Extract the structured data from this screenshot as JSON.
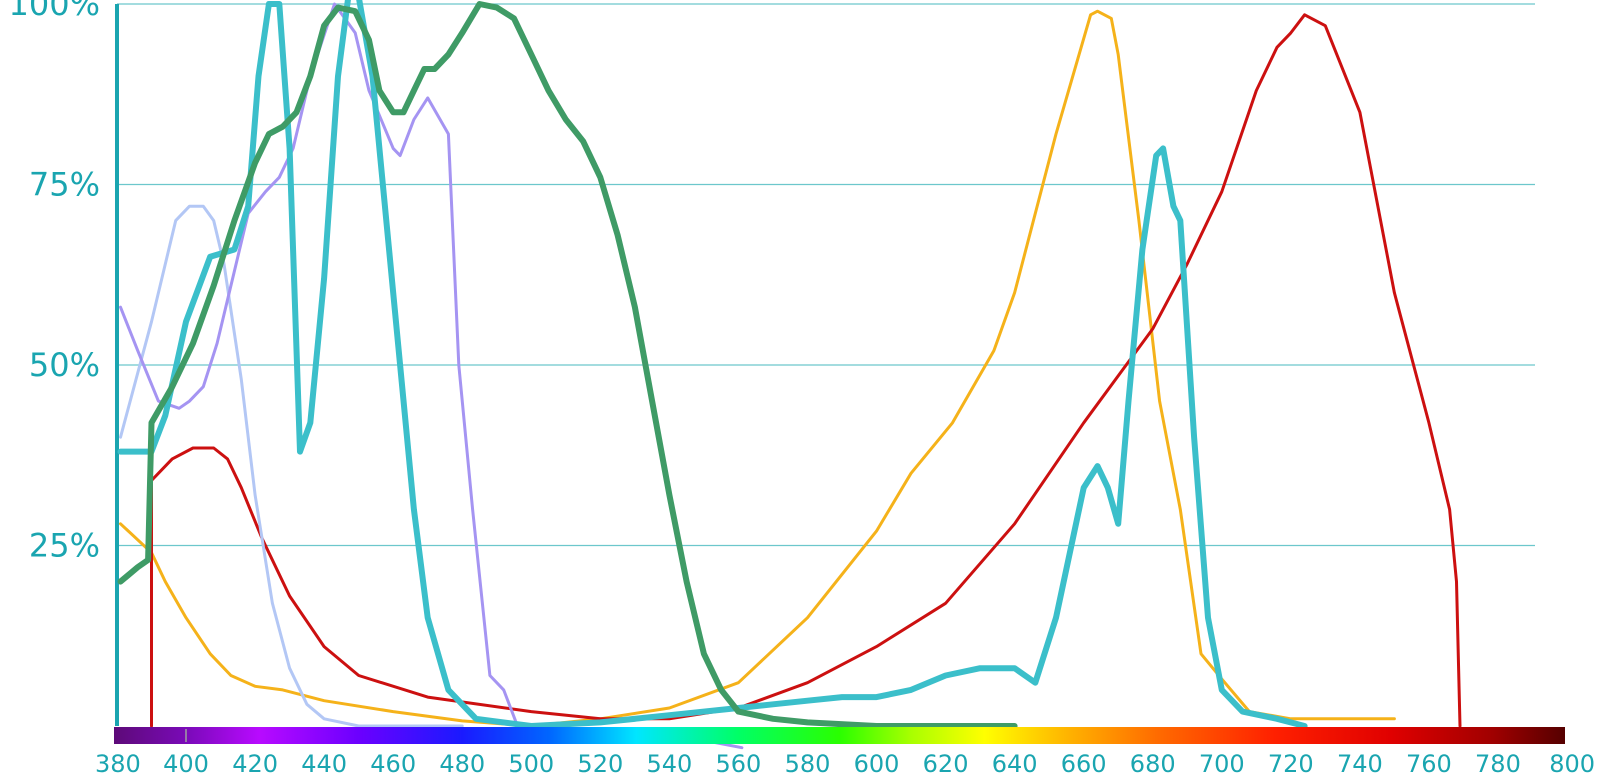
{
  "chart_data": {
    "type": "line",
    "title": "",
    "xlabel": "",
    "ylabel": "",
    "xlim": [
      380,
      800
    ],
    "ylim": [
      0,
      100
    ],
    "grid": true,
    "legend": "none",
    "x_ticks": [
      "380",
      "400",
      "420",
      "440",
      "460",
      "480",
      "500",
      "520",
      "540",
      "560",
      "580",
      "600",
      "620",
      "640",
      "660",
      "680",
      "700",
      "720",
      "740",
      "760",
      "780",
      "800"
    ],
    "y_ticks": [
      {
        "value": 25,
        "label": "25%"
      },
      {
        "value": 50,
        "label": "50%"
      },
      {
        "value": 75,
        "label": "75%"
      },
      {
        "value": 100,
        "label": "100%"
      }
    ],
    "spectrum_bar": true,
    "series": [
      {
        "color": "#f5b21a",
        "width": 3,
        "points": [
          [
            381,
            28
          ],
          [
            390,
            24
          ],
          [
            394,
            20
          ],
          [
            400,
            15
          ],
          [
            407,
            10
          ],
          [
            413,
            7
          ],
          [
            420,
            5.5
          ],
          [
            428,
            5
          ],
          [
            440,
            3.5
          ],
          [
            460,
            2
          ],
          [
            480,
            0.7
          ],
          [
            500,
            0
          ],
          [
            520,
            1
          ],
          [
            540,
            2.5
          ],
          [
            560,
            6
          ],
          [
            580,
            15
          ],
          [
            600,
            27
          ],
          [
            610,
            35
          ],
          [
            622,
            42
          ],
          [
            634,
            52
          ],
          [
            640,
            60
          ],
          [
            652,
            82
          ],
          [
            662,
            98.5
          ],
          [
            664,
            99
          ],
          [
            668,
            98
          ],
          [
            670,
            93
          ],
          [
            676,
            70
          ],
          [
            682,
            45
          ],
          [
            688,
            30
          ],
          [
            694,
            10
          ],
          [
            700,
            6.5
          ],
          [
            708,
            2
          ],
          [
            720,
            1
          ],
          [
            750,
            1
          ]
        ]
      },
      {
        "color": "#cc1010",
        "width": 3,
        "points": [
          [
            390,
            0
          ],
          [
            390,
            34
          ],
          [
            396,
            37
          ],
          [
            402,
            38.5
          ],
          [
            408,
            38.5
          ],
          [
            412,
            37
          ],
          [
            416,
            33
          ],
          [
            422,
            26
          ],
          [
            430,
            18
          ],
          [
            440,
            11
          ],
          [
            450,
            7
          ],
          [
            470,
            4
          ],
          [
            500,
            2
          ],
          [
            520,
            1
          ],
          [
            540,
            1
          ],
          [
            560,
            2.5
          ],
          [
            580,
            6
          ],
          [
            600,
            11
          ],
          [
            620,
            17
          ],
          [
            640,
            28
          ],
          [
            660,
            42
          ],
          [
            680,
            55
          ],
          [
            690,
            64
          ],
          [
            700,
            74
          ],
          [
            710,
            88
          ],
          [
            716,
            94
          ],
          [
            720,
            96
          ],
          [
            724,
            98.5
          ],
          [
            730,
            97
          ],
          [
            740,
            85
          ],
          [
            750,
            60
          ],
          [
            760,
            42
          ],
          [
            766,
            30
          ],
          [
            768,
            20
          ],
          [
            769,
            0
          ]
        ]
      },
      {
        "color": "#b3c7f5",
        "width": 3,
        "points": [
          [
            381,
            40
          ],
          [
            390,
            56
          ],
          [
            397,
            70
          ],
          [
            401,
            72
          ],
          [
            405,
            72
          ],
          [
            408,
            70
          ],
          [
            411,
            64
          ],
          [
            416,
            48
          ],
          [
            420,
            32
          ],
          [
            425,
            17
          ],
          [
            430,
            8
          ],
          [
            435,
            3
          ],
          [
            440,
            1
          ],
          [
            450,
            0
          ],
          [
            470,
            0
          ],
          [
            480,
            0
          ]
        ]
      },
      {
        "color": "#a594f2",
        "width": 3,
        "points": [
          [
            381,
            58
          ],
          [
            386,
            52
          ],
          [
            392,
            45
          ],
          [
            398,
            44
          ],
          [
            401,
            45
          ],
          [
            405,
            47
          ],
          [
            409,
            53
          ],
          [
            414,
            63
          ],
          [
            418,
            71
          ],
          [
            423,
            74
          ],
          [
            427,
            76
          ],
          [
            431,
            80
          ],
          [
            436,
            90
          ],
          [
            443,
            100
          ],
          [
            449,
            96
          ],
          [
            453,
            88
          ],
          [
            460,
            80
          ],
          [
            462,
            79
          ],
          [
            466,
            84
          ],
          [
            470,
            87
          ],
          [
            476,
            82
          ],
          [
            479,
            50
          ],
          [
            483,
            30
          ],
          [
            488,
            7
          ],
          [
            492,
            5
          ],
          [
            496,
            0
          ],
          [
            510,
            -0.5
          ],
          [
            530,
            -1
          ],
          [
            550,
            -2
          ],
          [
            561,
            -3
          ]
        ]
      },
      {
        "color": "#3bbfca",
        "width": 6,
        "points": [
          [
            381,
            38
          ],
          [
            390,
            38
          ],
          [
            394,
            43
          ],
          [
            400,
            56
          ],
          [
            407,
            65
          ],
          [
            414,
            66
          ],
          [
            418,
            72
          ],
          [
            421,
            90
          ],
          [
            424,
            100
          ],
          [
            427,
            100
          ],
          [
            430,
            80
          ],
          [
            433,
            38
          ],
          [
            436,
            42
          ],
          [
            440,
            62
          ],
          [
            444,
            90
          ],
          [
            447,
            101
          ],
          [
            450,
            101
          ],
          [
            454,
            90
          ],
          [
            458,
            70
          ],
          [
            462,
            50
          ],
          [
            466,
            30
          ],
          [
            470,
            15
          ],
          [
            476,
            5
          ],
          [
            484,
            1
          ],
          [
            500,
            0
          ],
          [
            520,
            0.5
          ],
          [
            540,
            1.5
          ],
          [
            560,
            2.5
          ],
          [
            570,
            3
          ],
          [
            580,
            3.5
          ],
          [
            590,
            4
          ],
          [
            600,
            4
          ],
          [
            610,
            5
          ],
          [
            620,
            7
          ],
          [
            630,
            8
          ],
          [
            640,
            8
          ],
          [
            646,
            6
          ],
          [
            652,
            15
          ],
          [
            660,
            33
          ],
          [
            664,
            36
          ],
          [
            667,
            33
          ],
          [
            670,
            28
          ],
          [
            673,
            45
          ],
          [
            677,
            66
          ],
          [
            681,
            79
          ],
          [
            683,
            80
          ],
          [
            686,
            72
          ],
          [
            688,
            70
          ],
          [
            692,
            40
          ],
          [
            696,
            15
          ],
          [
            700,
            5
          ],
          [
            706,
            2
          ],
          [
            716,
            1
          ],
          [
            724,
            0
          ]
        ]
      },
      {
        "color": "#3f9b66",
        "width": 6,
        "points": [
          [
            381,
            20
          ],
          [
            386,
            22
          ],
          [
            389,
            23
          ],
          [
            390,
            42
          ],
          [
            396,
            47
          ],
          [
            402,
            53
          ],
          [
            408,
            61
          ],
          [
            414,
            70
          ],
          [
            420,
            78
          ],
          [
            424,
            82
          ],
          [
            428,
            83
          ],
          [
            432,
            85
          ],
          [
            436,
            90
          ],
          [
            440,
            97
          ],
          [
            444,
            99.5
          ],
          [
            449,
            99
          ],
          [
            453,
            95
          ],
          [
            456,
            88
          ],
          [
            460,
            85
          ],
          [
            463,
            85
          ],
          [
            466,
            88
          ],
          [
            469,
            91
          ],
          [
            472,
            91
          ],
          [
            476,
            93
          ],
          [
            480,
            96
          ],
          [
            485,
            100
          ],
          [
            490,
            99.5
          ],
          [
            495,
            98
          ],
          [
            500,
            93
          ],
          [
            505,
            88
          ],
          [
            510,
            84
          ],
          [
            515,
            81
          ],
          [
            520,
            76
          ],
          [
            525,
            68
          ],
          [
            530,
            58
          ],
          [
            535,
            45
          ],
          [
            540,
            32
          ],
          [
            545,
            20
          ],
          [
            550,
            10
          ],
          [
            555,
            5
          ],
          [
            560,
            2
          ],
          [
            570,
            1
          ],
          [
            580,
            0.5
          ],
          [
            600,
            0
          ],
          [
            630,
            0
          ],
          [
            640,
            0
          ]
        ]
      }
    ]
  }
}
